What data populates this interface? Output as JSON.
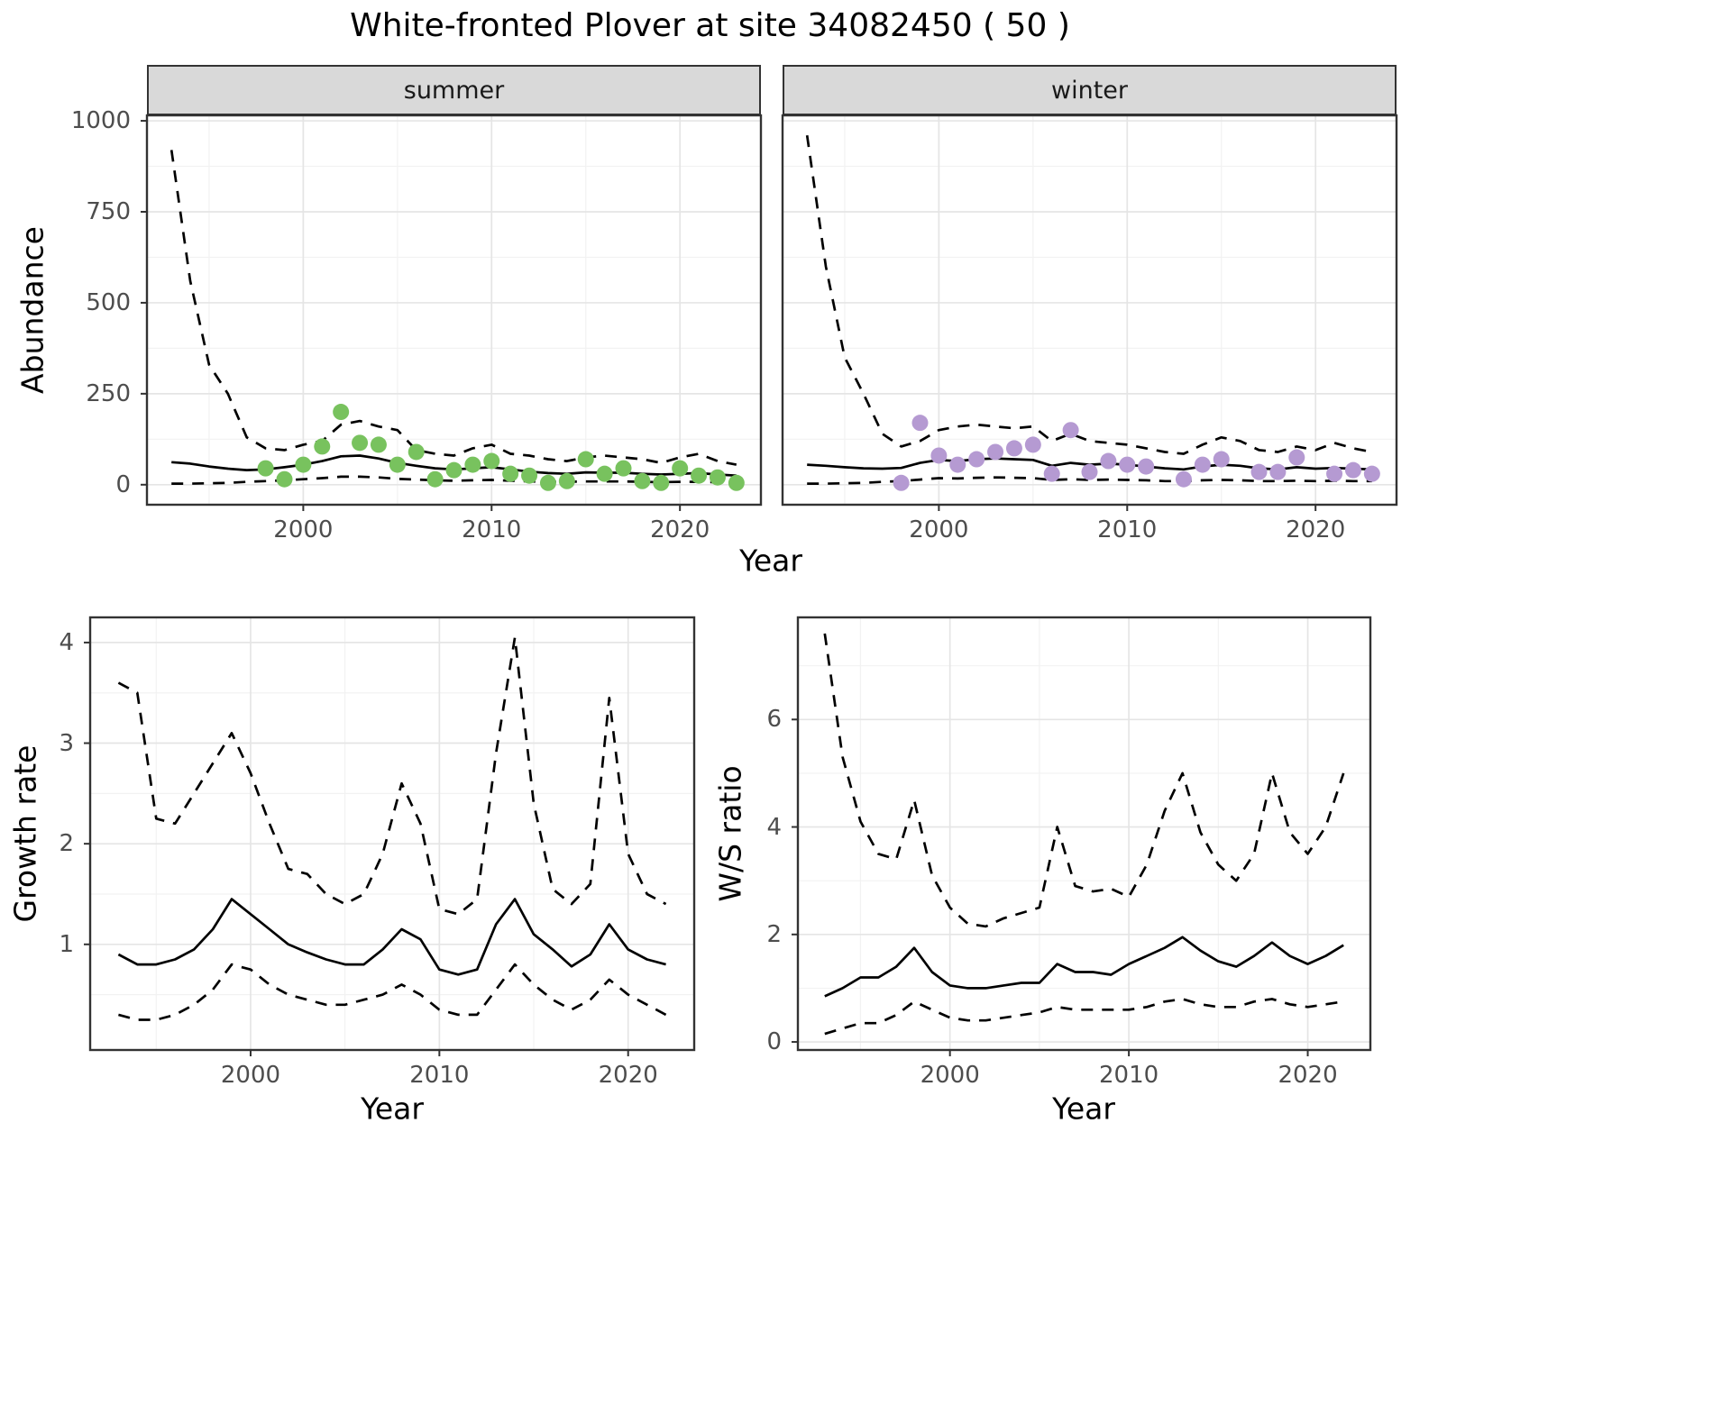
{
  "title": "White-fronted Plover at site 34082450 ( 50 )",
  "theme": {
    "strip_bg": "#d9d9d9",
    "panel_border": "#333333",
    "grid_major": "#e5e5e5",
    "grid_minor": "#f2f2f2",
    "line_color": "#000000",
    "tick_color": "#333333",
    "summer_point_color": "#78c25e",
    "winter_point_color": "#b59ad2"
  },
  "chart_data": [
    {
      "name": "abundance-summer",
      "type": "line",
      "facet_label": "summer",
      "xlabel": "Year",
      "ylabel": "Abundance",
      "xlim": [
        1991.7,
        2024.3
      ],
      "ylim": [
        -55,
        1015
      ],
      "xticks": [
        2000,
        2010,
        2020
      ],
      "yticks": [
        0,
        250,
        500,
        750,
        1000
      ],
      "xminor": [
        1995,
        2005,
        2015
      ],
      "yminor": [
        125,
        375,
        625,
        875
      ],
      "series": [
        {
          "name": "upper_ci",
          "type": "line",
          "style": "dashed",
          "x": [
            1993,
            1994,
            1995,
            1996,
            1997,
            1998,
            1999,
            2000,
            2001,
            2002,
            2003,
            2004,
            2005,
            2006,
            2007,
            2008,
            2009,
            2010,
            2011,
            2012,
            2013,
            2014,
            2015,
            2016,
            2017,
            2018,
            2019,
            2020,
            2021,
            2022,
            2023
          ],
          "y": [
            920,
            560,
            330,
            250,
            130,
            100,
            95,
            110,
            120,
            165,
            175,
            160,
            150,
            95,
            85,
            80,
            100,
            110,
            85,
            80,
            70,
            65,
            75,
            80,
            75,
            70,
            60,
            75,
            85,
            65,
            55
          ]
        },
        {
          "name": "estimate",
          "type": "line",
          "style": "solid",
          "x": [
            1993,
            1994,
            1995,
            1996,
            1997,
            1998,
            1999,
            2000,
            2001,
            2002,
            2003,
            2004,
            2005,
            2006,
            2007,
            2008,
            2009,
            2010,
            2011,
            2012,
            2013,
            2014,
            2015,
            2016,
            2017,
            2018,
            2019,
            2020,
            2021,
            2022,
            2023
          ],
          "y": [
            62,
            58,
            50,
            44,
            40,
            42,
            48,
            55,
            65,
            78,
            80,
            72,
            60,
            52,
            45,
            42,
            45,
            48,
            42,
            36,
            32,
            30,
            34,
            33,
            33,
            30,
            28,
            30,
            32,
            28,
            25
          ]
        },
        {
          "name": "lower_ci",
          "type": "line",
          "style": "dashed",
          "x": [
            1993,
            1994,
            1995,
            1996,
            1997,
            1998,
            1999,
            2000,
            2001,
            2002,
            2003,
            2004,
            2005,
            2006,
            2007,
            2008,
            2009,
            2010,
            2011,
            2012,
            2013,
            2014,
            2015,
            2016,
            2017,
            2018,
            2019,
            2020,
            2021,
            2022,
            2023
          ],
          "y": [
            3,
            3,
            4,
            5,
            8,
            10,
            12,
            15,
            18,
            22,
            22,
            20,
            16,
            14,
            12,
            11,
            12,
            13,
            11,
            9,
            8,
            8,
            9,
            9,
            9,
            8,
            7,
            8,
            8,
            7,
            6
          ]
        },
        {
          "name": "observations",
          "type": "points",
          "color": "#78c25e",
          "x": [
            1998,
            1999,
            2000,
            2001,
            2002,
            2003,
            2004,
            2005,
            2006,
            2007,
            2008,
            2009,
            2010,
            2011,
            2012,
            2013,
            2014,
            2015,
            2016,
            2017,
            2018,
            2019,
            2020,
            2021,
            2022,
            2023
          ],
          "y": [
            45,
            15,
            55,
            105,
            200,
            115,
            110,
            55,
            90,
            15,
            40,
            55,
            65,
            30,
            25,
            5,
            10,
            70,
            30,
            45,
            10,
            5,
            45,
            25,
            20,
            5
          ]
        }
      ]
    },
    {
      "name": "abundance-winter",
      "type": "line",
      "facet_label": "winter",
      "xlabel": "Year",
      "ylabel": "Abundance",
      "xlim": [
        1991.7,
        2024.3
      ],
      "ylim": [
        -55,
        1015
      ],
      "xticks": [
        2000,
        2010,
        2020
      ],
      "yticks": [
        0,
        250,
        500,
        750,
        1000
      ],
      "xminor": [
        1995,
        2005,
        2015
      ],
      "yminor": [
        125,
        375,
        625,
        875
      ],
      "series": [
        {
          "name": "upper_ci",
          "type": "line",
          "style": "dashed",
          "x": [
            1993,
            1994,
            1995,
            1996,
            1997,
            1998,
            1999,
            2000,
            2001,
            2002,
            2003,
            2004,
            2005,
            2006,
            2007,
            2008,
            2009,
            2010,
            2011,
            2012,
            2013,
            2014,
            2015,
            2016,
            2017,
            2018,
            2019,
            2020,
            2021,
            2022,
            2023
          ],
          "y": [
            960,
            600,
            350,
            250,
            140,
            105,
            120,
            150,
            160,
            165,
            160,
            155,
            160,
            120,
            140,
            120,
            115,
            110,
            100,
            90,
            85,
            110,
            130,
            120,
            95,
            90,
            105,
            95,
            115,
            100,
            90
          ]
        },
        {
          "name": "estimate",
          "type": "line",
          "style": "solid",
          "x": [
            1993,
            1994,
            1995,
            1996,
            1997,
            1998,
            1999,
            2000,
            2001,
            2002,
            2003,
            2004,
            2005,
            2006,
            2007,
            2008,
            2009,
            2010,
            2011,
            2012,
            2013,
            2014,
            2015,
            2016,
            2017,
            2018,
            2019,
            2020,
            2021,
            2022,
            2023
          ],
          "y": [
            55,
            52,
            48,
            45,
            44,
            46,
            60,
            68,
            65,
            70,
            72,
            70,
            68,
            52,
            60,
            55,
            58,
            55,
            50,
            45,
            42,
            50,
            55,
            52,
            45,
            42,
            48,
            44,
            46,
            44,
            42
          ]
        },
        {
          "name": "lower_ci",
          "type": "line",
          "style": "dashed",
          "x": [
            1993,
            1994,
            1995,
            1996,
            1997,
            1998,
            1999,
            2000,
            2001,
            2002,
            2003,
            2004,
            2005,
            2006,
            2007,
            2008,
            2009,
            2010,
            2011,
            2012,
            2013,
            2014,
            2015,
            2016,
            2017,
            2018,
            2019,
            2020,
            2021,
            2022,
            2023
          ],
          "y": [
            3,
            3,
            4,
            5,
            8,
            10,
            14,
            18,
            17,
            19,
            20,
            19,
            18,
            13,
            15,
            13,
            14,
            13,
            12,
            10,
            10,
            12,
            13,
            12,
            10,
            10,
            11,
            10,
            11,
            10,
            10
          ]
        },
        {
          "name": "observations",
          "type": "points",
          "color": "#b59ad2",
          "x": [
            1998,
            1999,
            2000,
            2001,
            2002,
            2003,
            2004,
            2005,
            2006,
            2007,
            2008,
            2009,
            2010,
            2011,
            2013,
            2014,
            2015,
            2017,
            2018,
            2019,
            2021,
            2022,
            2023
          ],
          "y": [
            5,
            170,
            80,
            55,
            70,
            90,
            100,
            110,
            30,
            150,
            35,
            65,
            55,
            50,
            15,
            55,
            70,
            35,
            35,
            75,
            30,
            40,
            30
          ]
        }
      ]
    },
    {
      "name": "growth-rate",
      "type": "line",
      "facet_label": "",
      "xlabel": "Year",
      "ylabel": "Growth rate",
      "xlim": [
        1991.5,
        2023.5
      ],
      "ylim": [
        -0.05,
        4.25
      ],
      "xticks": [
        2000,
        2010,
        2020
      ],
      "yticks": [
        1,
        2,
        3,
        4
      ],
      "xminor": [
        1995,
        2005,
        2015
      ],
      "yminor": [
        0.5,
        1.5,
        2.5,
        3.5
      ],
      "series": [
        {
          "name": "upper_ci",
          "type": "line",
          "style": "dashed",
          "x": [
            1993,
            1994,
            1995,
            1996,
            1997,
            1998,
            1999,
            2000,
            2001,
            2002,
            2003,
            2004,
            2005,
            2006,
            2007,
            2008,
            2009,
            2010,
            2011,
            2012,
            2013,
            2014,
            2015,
            2016,
            2017,
            2018,
            2019,
            2020,
            2021,
            2022
          ],
          "y": [
            3.6,
            3.5,
            2.25,
            2.2,
            2.5,
            2.8,
            3.1,
            2.7,
            2.2,
            1.75,
            1.7,
            1.5,
            1.4,
            1.5,
            1.9,
            2.6,
            2.2,
            1.35,
            1.3,
            1.45,
            2.9,
            4.05,
            2.4,
            1.55,
            1.4,
            1.6,
            3.45,
            1.9,
            1.5,
            1.4
          ]
        },
        {
          "name": "estimate",
          "type": "line",
          "style": "solid",
          "x": [
            1993,
            1994,
            1995,
            1996,
            1997,
            1998,
            1999,
            2000,
            2001,
            2002,
            2003,
            2004,
            2005,
            2006,
            2007,
            2008,
            2009,
            2010,
            2011,
            2012,
            2013,
            2014,
            2015,
            2016,
            2017,
            2018,
            2019,
            2020,
            2021,
            2022
          ],
          "y": [
            0.9,
            0.8,
            0.8,
            0.85,
            0.95,
            1.15,
            1.45,
            1.3,
            1.15,
            1.0,
            0.92,
            0.85,
            0.8,
            0.8,
            0.95,
            1.15,
            1.05,
            0.75,
            0.7,
            0.75,
            1.2,
            1.45,
            1.1,
            0.95,
            0.78,
            0.9,
            1.2,
            0.95,
            0.85,
            0.8
          ]
        },
        {
          "name": "lower_ci",
          "type": "line",
          "style": "dashed",
          "x": [
            1993,
            1994,
            1995,
            1996,
            1997,
            1998,
            1999,
            2000,
            2001,
            2002,
            2003,
            2004,
            2005,
            2006,
            2007,
            2008,
            2009,
            2010,
            2011,
            2012,
            2013,
            2014,
            2015,
            2016,
            2017,
            2018,
            2019,
            2020,
            2021,
            2022
          ],
          "y": [
            0.3,
            0.25,
            0.25,
            0.3,
            0.4,
            0.55,
            0.8,
            0.75,
            0.6,
            0.5,
            0.45,
            0.4,
            0.4,
            0.45,
            0.5,
            0.6,
            0.5,
            0.35,
            0.3,
            0.3,
            0.55,
            0.8,
            0.6,
            0.45,
            0.35,
            0.45,
            0.65,
            0.5,
            0.4,
            0.3
          ]
        }
      ]
    },
    {
      "name": "ws-ratio",
      "type": "line",
      "facet_label": "",
      "xlabel": "Year",
      "ylabel": "W/S ratio",
      "xlim": [
        1991.5,
        2023.5
      ],
      "ylim": [
        -0.15,
        7.9
      ],
      "xticks": [
        2000,
        2010,
        2020
      ],
      "yticks": [
        0,
        2,
        4,
        6
      ],
      "xminor": [
        1995,
        2005,
        2015
      ],
      "yminor": [
        1,
        3,
        5,
        7
      ],
      "series": [
        {
          "name": "upper_ci",
          "type": "line",
          "style": "dashed",
          "x": [
            1993,
            1994,
            1995,
            1996,
            1997,
            1998,
            1999,
            2000,
            2001,
            2002,
            2003,
            2004,
            2005,
            2006,
            2007,
            2008,
            2009,
            2010,
            2011,
            2012,
            2013,
            2014,
            2015,
            2016,
            2017,
            2018,
            2019,
            2020,
            2021,
            2022
          ],
          "y": [
            7.6,
            5.3,
            4.1,
            3.5,
            3.4,
            4.5,
            3.1,
            2.5,
            2.2,
            2.15,
            2.3,
            2.4,
            2.5,
            4.0,
            2.9,
            2.8,
            2.85,
            2.7,
            3.3,
            4.3,
            5.0,
            3.9,
            3.3,
            3.0,
            3.5,
            5.0,
            3.9,
            3.5,
            4.0,
            5.0
          ]
        },
        {
          "name": "estimate",
          "type": "line",
          "style": "solid",
          "x": [
            1993,
            1994,
            1995,
            1996,
            1997,
            1998,
            1999,
            2000,
            2001,
            2002,
            2003,
            2004,
            2005,
            2006,
            2007,
            2008,
            2009,
            2010,
            2011,
            2012,
            2013,
            2014,
            2015,
            2016,
            2017,
            2018,
            2019,
            2020,
            2021,
            2022
          ],
          "y": [
            0.85,
            1.0,
            1.2,
            1.2,
            1.4,
            1.75,
            1.3,
            1.05,
            1.0,
            1.0,
            1.05,
            1.1,
            1.1,
            1.45,
            1.3,
            1.3,
            1.25,
            1.45,
            1.6,
            1.75,
            1.95,
            1.7,
            1.5,
            1.4,
            1.6,
            1.85,
            1.6,
            1.45,
            1.6,
            1.8
          ]
        },
        {
          "name": "lower_ci",
          "type": "line",
          "style": "dashed",
          "x": [
            1993,
            1994,
            1995,
            1996,
            1997,
            1998,
            1999,
            2000,
            2001,
            2002,
            2003,
            2004,
            2005,
            2006,
            2007,
            2008,
            2009,
            2010,
            2011,
            2012,
            2013,
            2014,
            2015,
            2016,
            2017,
            2018,
            2019,
            2020,
            2021,
            2022
          ],
          "y": [
            0.15,
            0.25,
            0.35,
            0.35,
            0.5,
            0.75,
            0.6,
            0.45,
            0.4,
            0.4,
            0.45,
            0.5,
            0.55,
            0.65,
            0.6,
            0.6,
            0.6,
            0.6,
            0.65,
            0.75,
            0.8,
            0.7,
            0.65,
            0.65,
            0.75,
            0.8,
            0.7,
            0.65,
            0.7,
            0.75
          ]
        }
      ]
    }
  ]
}
